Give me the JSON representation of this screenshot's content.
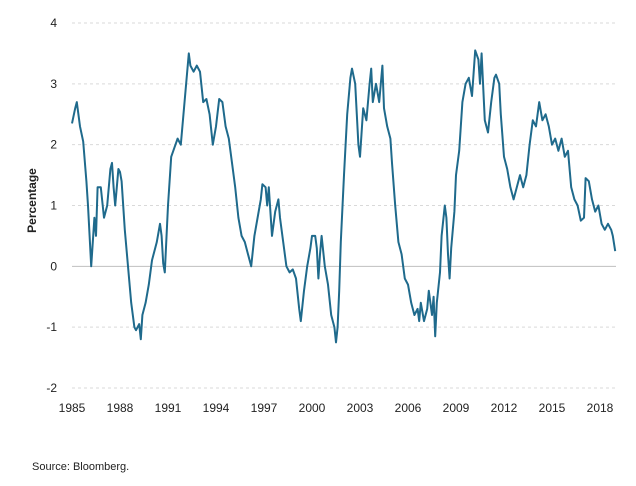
{
  "chart_data": {
    "type": "line",
    "title": "",
    "xlabel": "",
    "ylabel": "Percentage",
    "ylim": [
      -2,
      4
    ],
    "xlim": [
      1985,
      2019
    ],
    "yticks": [
      "-2",
      "-1",
      "0",
      "1",
      "2",
      "3",
      "4"
    ],
    "xticks": [
      "1985",
      "1988",
      "1991",
      "1994",
      "1997",
      "2000",
      "2003",
      "2006",
      "2009",
      "2012",
      "2015",
      "2018"
    ],
    "grid": true,
    "series": [
      {
        "name": "",
        "color": "#1f6a8c",
        "points": [
          [
            1985.0,
            2.35
          ],
          [
            1985.2,
            2.6
          ],
          [
            1985.3,
            2.7
          ],
          [
            1985.5,
            2.3
          ],
          [
            1985.7,
            2.05
          ],
          [
            1985.9,
            1.4
          ],
          [
            1986.0,
            1.0
          ],
          [
            1986.2,
            0.0
          ],
          [
            1986.4,
            0.8
          ],
          [
            1986.5,
            0.5
          ],
          [
            1986.6,
            1.3
          ],
          [
            1986.8,
            1.3
          ],
          [
            1987.0,
            0.8
          ],
          [
            1987.2,
            1.0
          ],
          [
            1987.4,
            1.6
          ],
          [
            1987.5,
            1.7
          ],
          [
            1987.6,
            1.3
          ],
          [
            1987.7,
            1.0
          ],
          [
            1987.9,
            1.6
          ],
          [
            1988.0,
            1.55
          ],
          [
            1988.1,
            1.4
          ],
          [
            1988.3,
            0.6
          ],
          [
            1988.5,
            0.0
          ],
          [
            1988.7,
            -0.6
          ],
          [
            1988.9,
            -1.0
          ],
          [
            1989.0,
            -1.05
          ],
          [
            1989.2,
            -0.95
          ],
          [
            1989.3,
            -1.2
          ],
          [
            1989.4,
            -0.8
          ],
          [
            1989.6,
            -0.6
          ],
          [
            1989.8,
            -0.3
          ],
          [
            1990.0,
            0.1
          ],
          [
            1990.2,
            0.3
          ],
          [
            1990.3,
            0.4
          ],
          [
            1990.5,
            0.7
          ],
          [
            1990.6,
            0.5
          ],
          [
            1990.7,
            0.05
          ],
          [
            1990.8,
            -0.1
          ],
          [
            1991.0,
            1.0
          ],
          [
            1991.2,
            1.8
          ],
          [
            1991.4,
            1.95
          ],
          [
            1991.6,
            2.1
          ],
          [
            1991.8,
            2.0
          ],
          [
            1992.0,
            2.6
          ],
          [
            1992.2,
            3.2
          ],
          [
            1992.3,
            3.5
          ],
          [
            1992.4,
            3.3
          ],
          [
            1992.6,
            3.2
          ],
          [
            1992.8,
            3.3
          ],
          [
            1993.0,
            3.2
          ],
          [
            1993.2,
            2.7
          ],
          [
            1993.4,
            2.75
          ],
          [
            1993.6,
            2.5
          ],
          [
            1993.8,
            2.0
          ],
          [
            1994.0,
            2.3
          ],
          [
            1994.2,
            2.75
          ],
          [
            1994.4,
            2.7
          ],
          [
            1994.6,
            2.3
          ],
          [
            1994.8,
            2.1
          ],
          [
            1995.0,
            1.7
          ],
          [
            1995.2,
            1.3
          ],
          [
            1995.4,
            0.8
          ],
          [
            1995.6,
            0.5
          ],
          [
            1995.8,
            0.4
          ],
          [
            1996.0,
            0.2
          ],
          [
            1996.2,
            0.0
          ],
          [
            1996.4,
            0.5
          ],
          [
            1996.6,
            0.8
          ],
          [
            1996.8,
            1.1
          ],
          [
            1996.9,
            1.35
          ],
          [
            1997.1,
            1.3
          ],
          [
            1997.2,
            1.0
          ],
          [
            1997.3,
            1.3
          ],
          [
            1997.5,
            0.5
          ],
          [
            1997.7,
            0.9
          ],
          [
            1997.9,
            1.1
          ],
          [
            1998.0,
            0.8
          ],
          [
            1998.2,
            0.4
          ],
          [
            1998.4,
            0.0
          ],
          [
            1998.6,
            -0.1
          ],
          [
            1998.8,
            -0.05
          ],
          [
            1999.0,
            -0.2
          ],
          [
            1999.2,
            -0.7
          ],
          [
            1999.3,
            -0.9
          ],
          [
            1999.5,
            -0.4
          ],
          [
            1999.7,
            0.0
          ],
          [
            1999.9,
            0.3
          ],
          [
            2000.0,
            0.5
          ],
          [
            2000.2,
            0.5
          ],
          [
            2000.3,
            0.3
          ],
          [
            2000.4,
            -0.2
          ],
          [
            2000.5,
            0.2
          ],
          [
            2000.6,
            0.5
          ],
          [
            2000.8,
            0.0
          ],
          [
            2001.0,
            -0.3
          ],
          [
            2001.2,
            -0.8
          ],
          [
            2001.4,
            -1.0
          ],
          [
            2001.5,
            -1.25
          ],
          [
            2001.6,
            -1.0
          ],
          [
            2001.7,
            -0.4
          ],
          [
            2001.8,
            0.4
          ],
          [
            2002.0,
            1.5
          ],
          [
            2002.2,
            2.5
          ],
          [
            2002.4,
            3.1
          ],
          [
            2002.5,
            3.25
          ],
          [
            2002.7,
            3.0
          ],
          [
            2002.8,
            2.5
          ],
          [
            2002.9,
            2.0
          ],
          [
            2003.0,
            1.8
          ],
          [
            2003.2,
            2.6
          ],
          [
            2003.4,
            2.4
          ],
          [
            2003.6,
            3.0
          ],
          [
            2003.7,
            3.25
          ],
          [
            2003.8,
            2.7
          ],
          [
            2004.0,
            3.0
          ],
          [
            2004.2,
            2.7
          ],
          [
            2004.3,
            3.0
          ],
          [
            2004.4,
            3.3
          ],
          [
            2004.5,
            2.6
          ],
          [
            2004.7,
            2.3
          ],
          [
            2004.9,
            2.1
          ],
          [
            2005.0,
            1.7
          ],
          [
            2005.2,
            1.0
          ],
          [
            2005.4,
            0.4
          ],
          [
            2005.6,
            0.2
          ],
          [
            2005.8,
            -0.2
          ],
          [
            2006.0,
            -0.3
          ],
          [
            2006.2,
            -0.6
          ],
          [
            2006.4,
            -0.8
          ],
          [
            2006.6,
            -0.7
          ],
          [
            2006.7,
            -0.9
          ],
          [
            2006.8,
            -0.6
          ],
          [
            2007.0,
            -0.9
          ],
          [
            2007.2,
            -0.7
          ],
          [
            2007.3,
            -0.4
          ],
          [
            2007.5,
            -0.8
          ],
          [
            2007.6,
            -0.5
          ],
          [
            2007.7,
            -1.15
          ],
          [
            2007.8,
            -0.6
          ],
          [
            2008.0,
            -0.1
          ],
          [
            2008.1,
            0.5
          ],
          [
            2008.3,
            1.0
          ],
          [
            2008.4,
            0.8
          ],
          [
            2008.5,
            0.2
          ],
          [
            2008.6,
            -0.2
          ],
          [
            2008.7,
            0.3
          ],
          [
            2008.9,
            0.9
          ],
          [
            2009.0,
            1.5
          ],
          [
            2009.2,
            1.9
          ],
          [
            2009.4,
            2.7
          ],
          [
            2009.6,
            3.0
          ],
          [
            2009.8,
            3.1
          ],
          [
            2010.0,
            2.8
          ],
          [
            2010.2,
            3.55
          ],
          [
            2010.4,
            3.4
          ],
          [
            2010.5,
            3.0
          ],
          [
            2010.6,
            3.5
          ],
          [
            2010.8,
            2.4
          ],
          [
            2011.0,
            2.2
          ],
          [
            2011.2,
            2.7
          ],
          [
            2011.4,
            3.1
          ],
          [
            2011.5,
            3.15
          ],
          [
            2011.7,
            3.0
          ],
          [
            2011.8,
            2.5
          ],
          [
            2012.0,
            1.8
          ],
          [
            2012.2,
            1.6
          ],
          [
            2012.4,
            1.3
          ],
          [
            2012.6,
            1.1
          ],
          [
            2012.8,
            1.3
          ],
          [
            2013.0,
            1.5
          ],
          [
            2013.2,
            1.3
          ],
          [
            2013.4,
            1.5
          ],
          [
            2013.6,
            2.0
          ],
          [
            2013.8,
            2.4
          ],
          [
            2014.0,
            2.3
          ],
          [
            2014.2,
            2.7
          ],
          [
            2014.4,
            2.4
          ],
          [
            2014.6,
            2.5
          ],
          [
            2014.8,
            2.3
          ],
          [
            2015.0,
            2.0
          ],
          [
            2015.2,
            2.1
          ],
          [
            2015.4,
            1.9
          ],
          [
            2015.6,
            2.1
          ],
          [
            2015.8,
            1.8
          ],
          [
            2016.0,
            1.9
          ],
          [
            2016.2,
            1.3
          ],
          [
            2016.4,
            1.1
          ],
          [
            2016.6,
            1.0
          ],
          [
            2016.8,
            0.75
          ],
          [
            2017.0,
            0.8
          ],
          [
            2017.1,
            1.45
          ],
          [
            2017.3,
            1.4
          ],
          [
            2017.5,
            1.1
          ],
          [
            2017.7,
            0.9
          ],
          [
            2017.9,
            1.0
          ],
          [
            2018.1,
            0.7
          ],
          [
            2018.3,
            0.6
          ],
          [
            2018.5,
            0.7
          ],
          [
            2018.7,
            0.6
          ],
          [
            2018.8,
            0.5
          ],
          [
            2018.95,
            0.25
          ]
        ]
      }
    ]
  },
  "source_text": "Source: Bloomberg."
}
